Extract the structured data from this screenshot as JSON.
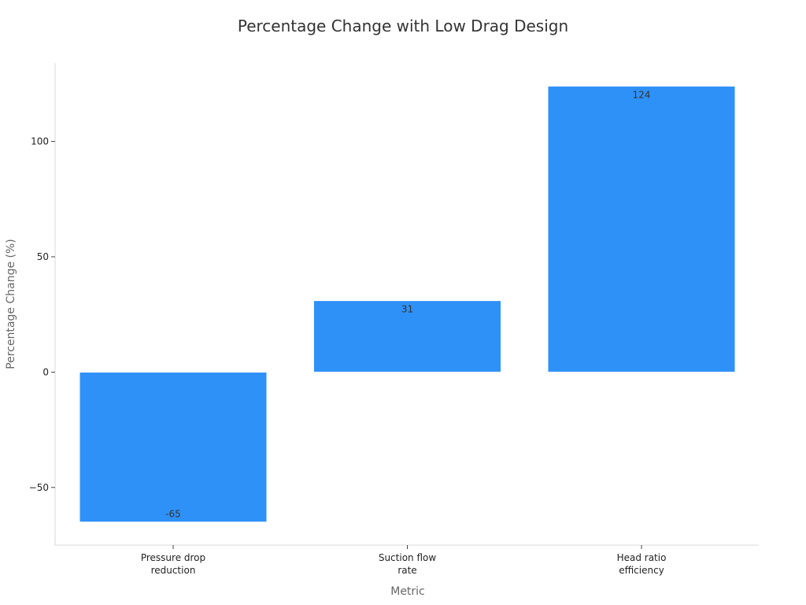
{
  "chart_data": {
    "type": "bar",
    "title": "Percentage Change with Low Drag Design",
    "xlabel": "Metric",
    "ylabel": "Percentage Change (%)",
    "categories": [
      [
        "Pressure drop",
        "reduction"
      ],
      [
        "Suction flow",
        "rate"
      ],
      [
        "Head ratio",
        "efficiency"
      ]
    ],
    "values": [
      -65,
      31,
      124
    ],
    "value_labels": [
      "-65",
      "31",
      "124"
    ],
    "ylim": [
      -75,
      134
    ],
    "yticks": [
      -50,
      0,
      50,
      100
    ],
    "ytick_labels": [
      "−50",
      "0",
      "50",
      "100"
    ],
    "grid": false,
    "bar_color": "#2e91f8"
  }
}
